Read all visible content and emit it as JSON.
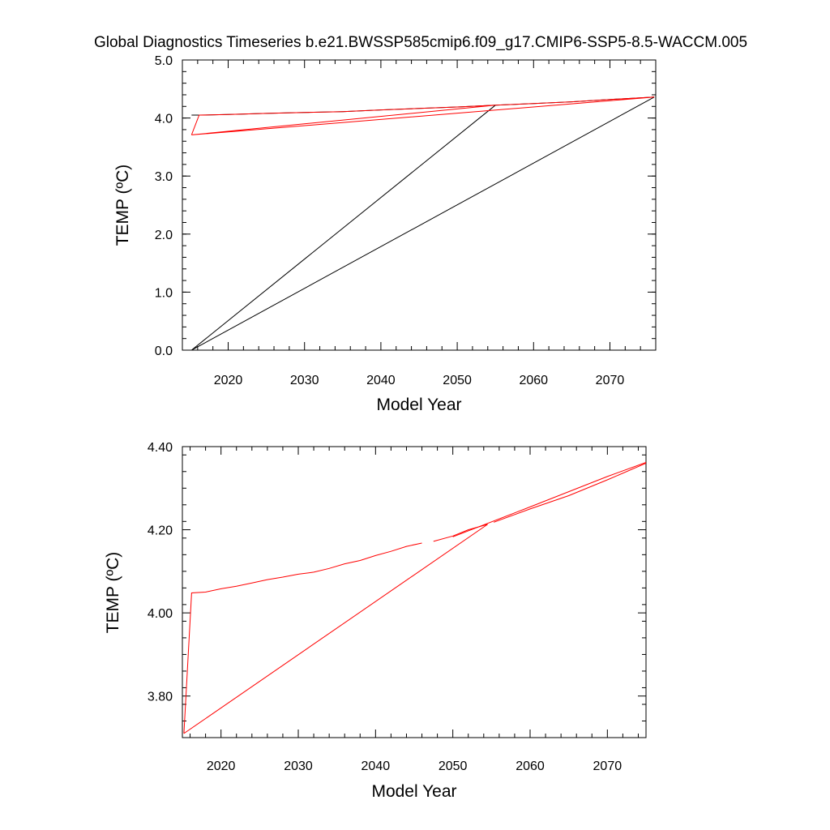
{
  "figure": {
    "title": "Global Diagnostics Timeseries b.e21.BWSSP585cmip6.f09_g17.CMIP6-SSP5-8.5-WACCM.005"
  },
  "chart_data": [
    {
      "type": "line",
      "xlabel": "Model Year",
      "ylabel": "TEMP (ºC)",
      "xlim": [
        2014,
        2076
      ],
      "ylim": [
        0.0,
        5.0
      ],
      "xticks": [
        2020,
        2030,
        2040,
        2050,
        2060,
        2070
      ],
      "xtick_labels": [
        "2020",
        "2030",
        "2040",
        "2050",
        "2060",
        "2070"
      ],
      "yticks": [
        0,
        1,
        2,
        3,
        4,
        5
      ],
      "ytick_labels": [
        "0.0",
        "1.0",
        "2.0",
        "3.0",
        "4.0",
        "5.0"
      ],
      "grid": false,
      "series": [
        {
          "color": "#000000",
          "x": [
            2015.2,
            2016.2,
            2020,
            2025,
            2030,
            2035,
            2040,
            2045,
            2050,
            2055,
            2060,
            2065,
            2070,
            2075.8,
            2015.2,
            2055
          ],
          "y": [
            4.05,
            4.05,
            4.06,
            4.08,
            4.095,
            4.11,
            4.14,
            4.165,
            4.19,
            4.22,
            4.25,
            4.28,
            4.32,
            4.36,
            0.0,
            4.22
          ]
        },
        {
          "color": "#ff0000",
          "x": [
            2015.2,
            2016.2,
            2020,
            2025,
            2030,
            2035,
            2040,
            2045,
            2050,
            2055,
            2060,
            2065,
            2070,
            2075.8,
            2015.2,
            2055
          ],
          "y": [
            3.71,
            4.05,
            4.06,
            4.08,
            4.095,
            4.11,
            4.14,
            4.165,
            4.19,
            4.22,
            4.25,
            4.28,
            4.32,
            4.36,
            3.71,
            4.22
          ]
        }
      ]
    },
    {
      "type": "line",
      "xlabel": "Model Year",
      "ylabel": "TEMP (ºC)",
      "xlim": [
        2015,
        2075
      ],
      "ylim": [
        3.7,
        4.4
      ],
      "xticks": [
        2020,
        2030,
        2040,
        2050,
        2060,
        2070
      ],
      "xtick_labels": [
        "2020",
        "2030",
        "2040",
        "2050",
        "2060",
        "2070"
      ],
      "yticks": [
        3.8,
        4.0,
        4.2,
        4.4
      ],
      "ytick_labels": [
        "3.80",
        "4.00",
        "4.20",
        "4.40"
      ],
      "grid": false,
      "series": [
        {
          "color": "#ff0000",
          "segments": [
            {
              "x": [
                2015.2,
                2016.2,
                2018,
                2020,
                2022,
                2024,
                2026,
                2028,
                2030,
                2032,
                2034,
                2036,
                2038,
                2040,
                2042,
                2044,
                2046
              ],
              "y": [
                3.71,
                4.048,
                4.05,
                4.058,
                4.064,
                4.072,
                4.08,
                4.086,
                4.093,
                4.098,
                4.107,
                4.118,
                4.126,
                4.138,
                4.148,
                4.16,
                4.168
              ]
            },
            {
              "x": [
                2047.5,
                2050,
                2052,
                2054.5
              ],
              "y": [
                4.172,
                4.185,
                4.2,
                4.213
              ]
            },
            {
              "x": [
                2015.2,
                2054.5
              ],
              "y": [
                3.71,
                4.213
              ]
            },
            {
              "x": [
                2055.3,
                2060,
                2065,
                2070,
                2075
              ],
              "y": [
                4.218,
                4.25,
                4.282,
                4.32,
                4.36
              ]
            },
            {
              "x": [
                2050,
                2060,
                2070,
                2075
              ],
              "y": [
                4.183,
                4.255,
                4.328,
                4.362
              ]
            }
          ]
        }
      ]
    }
  ]
}
